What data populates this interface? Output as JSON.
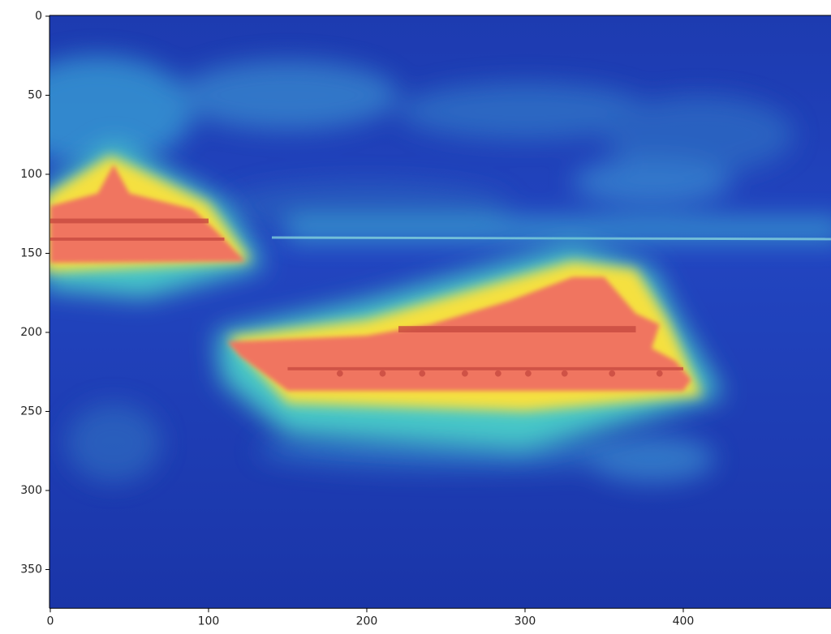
{
  "chart_data": {
    "type": "image",
    "xlim": [
      -0.5,
      499.5
    ],
    "ylim": [
      374.5,
      -0.5
    ],
    "xticks": [
      0,
      100,
      200,
      300,
      400
    ],
    "yticks": [
      0,
      50,
      100,
      150,
      200,
      250,
      300,
      350
    ]
  }
}
